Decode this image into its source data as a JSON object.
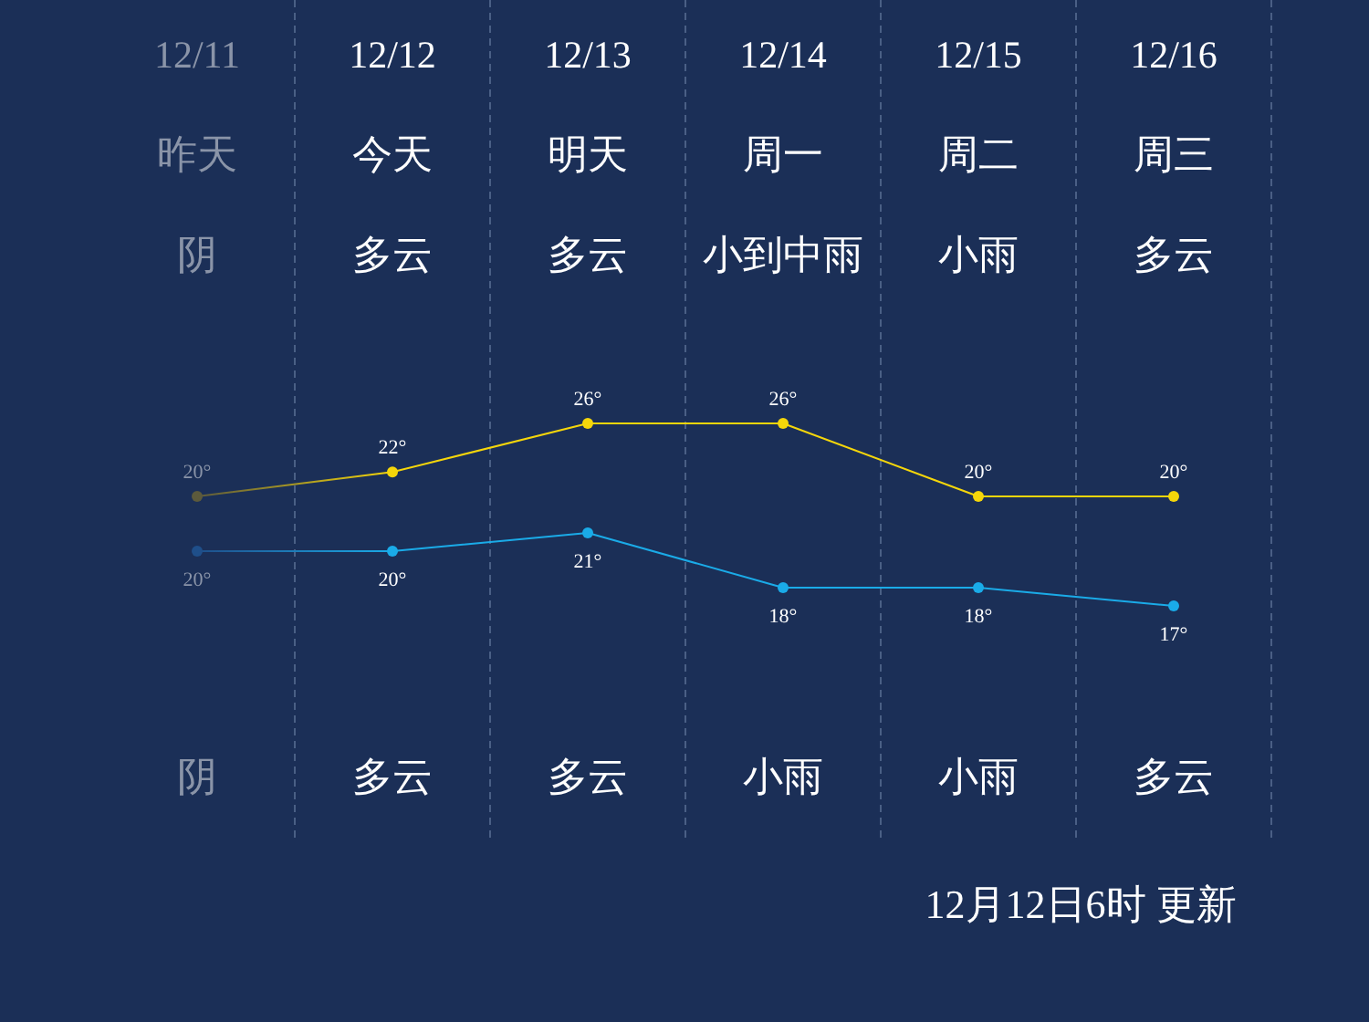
{
  "chart_data": [
    {
      "type": "line",
      "categories": [
        "12/11",
        "12/12",
        "12/13",
        "12/14",
        "12/15",
        "12/16"
      ],
      "series": [
        {
          "color": "#f5d60a",
          "colors": [
            "#5c5a3c",
            "#f5d60a",
            "#f5d60a",
            "#f5d60a",
            "#f5d60a",
            "#f5d60a"
          ],
          "values": [
            20,
            22,
            26,
            26,
            20,
            20
          ],
          "value_labels": [
            "20°",
            "22°",
            "26°",
            "26°",
            "20°",
            "20°"
          ]
        }
      ],
      "tick_labels": "x",
      "marker": "circle",
      "grid": "x",
      "annotations": [
        "昨天",
        "今天",
        "明天",
        "周一",
        "周二",
        "周三",
        "阴",
        "多云",
        "多云",
        "小到中雨",
        "小雨",
        "多云"
      ]
    },
    {
      "type": "line",
      "categories": [
        null,
        null,
        null,
        null,
        null,
        null
      ],
      "series": [
        {
          "color": "#1aabe8",
          "colors": [
            "#1f4f8a",
            "#1aabe8",
            "#1aabe8",
            "#1aabe8",
            "#1aabe8",
            "#1aabe8"
          ],
          "values": [
            20,
            20,
            21,
            18,
            18,
            17
          ],
          "value_labels": [
            "20°",
            "20°",
            "21°",
            "18°",
            "18°",
            "17°"
          ]
        }
      ],
      "tick_labels": false,
      "marker": "circle",
      "annotations": [
        "阴",
        "多云",
        "多云",
        "小雨",
        "小雨",
        "多云",
        "12月12日6时 更新"
      ]
    }
  ]
}
